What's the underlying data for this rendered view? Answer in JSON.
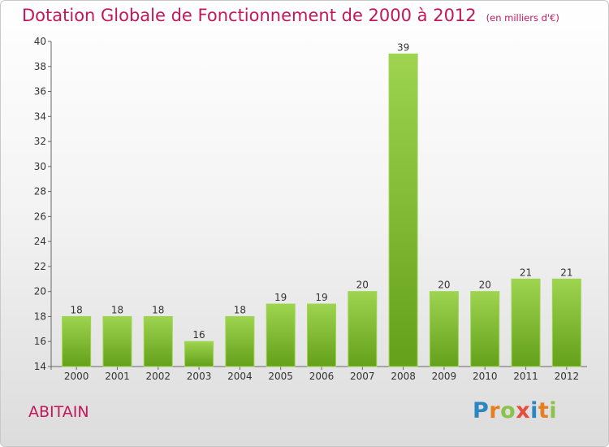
{
  "title": "Dotation Globale de Fonctionnement de 2000 à 2012",
  "unit_note": "(en milliers d'€)",
  "town": "ABITAIN",
  "logo": {
    "letters": [
      "P",
      "r",
      "o",
      "x",
      "i",
      "t",
      "i"
    ],
    "colors": [
      "#2e86c1",
      "#e67e22",
      "#8bc34a",
      "#e74c3c",
      "#2e86c1",
      "#e67e22",
      "#8bc34a"
    ]
  },
  "colors": {
    "bar_light": "#9ed44f",
    "bar_dark": "#64a01a",
    "title": "#c2185b",
    "axis": "#666666"
  },
  "chart_data": {
    "type": "bar",
    "title": "Dotation Globale de Fonctionnement de 2000 à 2012",
    "xlabel": "",
    "ylabel": "",
    "categories": [
      "2000",
      "2001",
      "2002",
      "2003",
      "2004",
      "2005",
      "2006",
      "2007",
      "2008",
      "2009",
      "2010",
      "2011",
      "2012"
    ],
    "values": [
      18,
      18,
      18,
      16,
      18,
      19,
      19,
      20,
      39,
      20,
      20,
      21,
      21
    ],
    "ylim": [
      14,
      40
    ],
    "yticks": [
      14,
      16,
      18,
      20,
      22,
      24,
      26,
      28,
      30,
      32,
      34,
      36,
      38,
      40
    ],
    "grid": false,
    "legend": "none"
  }
}
